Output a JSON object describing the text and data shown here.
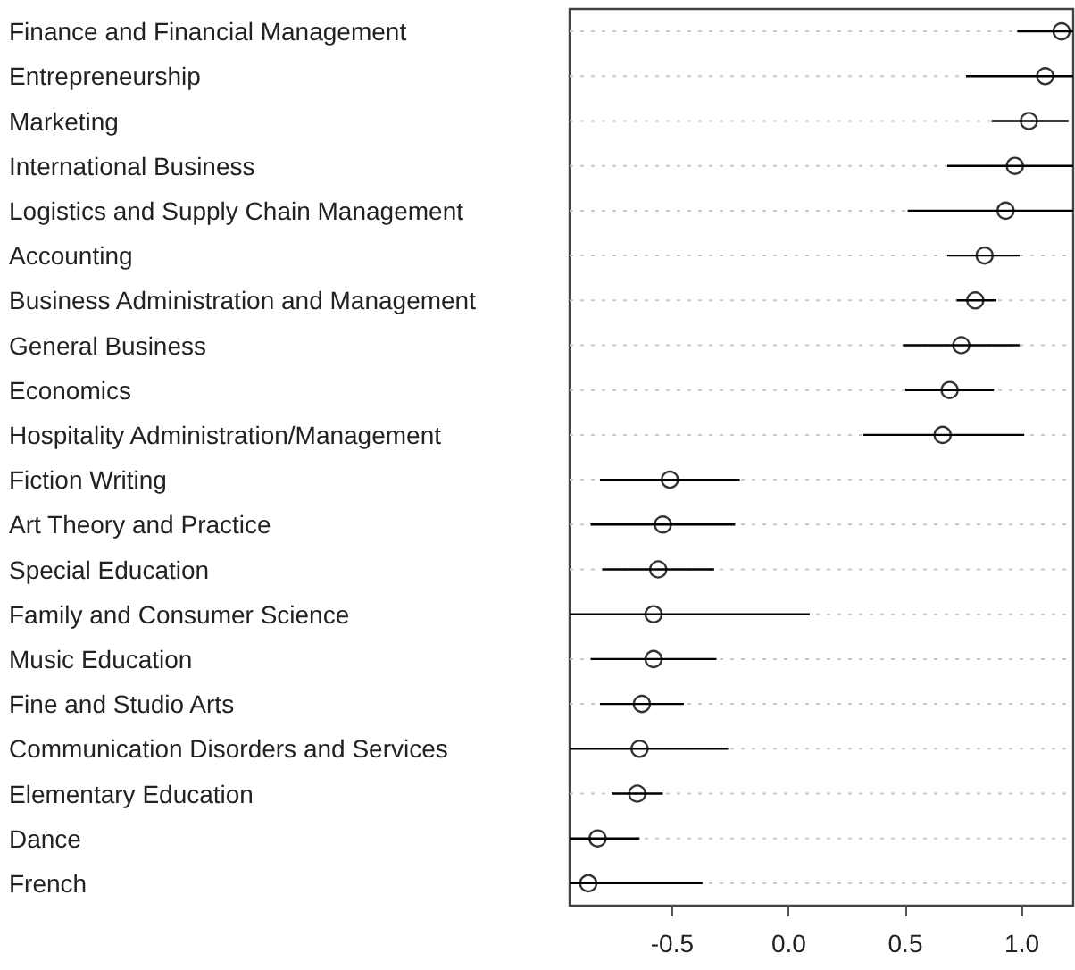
{
  "chart_data": {
    "type": "scatter",
    "orientation": "horizontal",
    "categories": [
      "Finance and Financial Management",
      "Entrepreneurship",
      "Marketing",
      "International Business",
      "Logistics and Supply Chain Management",
      "Accounting",
      "Business Administration and Management",
      "General Business",
      "Economics",
      "Hospitality Administration/Management",
      "Fiction Writing",
      "Art Theory and Practice",
      "Special Education",
      "Family and Consumer Science",
      "Music Education",
      "Fine and Studio Arts",
      "Communication Disorders and Services",
      "Elementary Education",
      "Dance",
      "French"
    ],
    "values": [
      1.17,
      1.1,
      1.03,
      0.97,
      0.93,
      0.84,
      0.8,
      0.74,
      0.69,
      0.66,
      -0.51,
      -0.54,
      -0.56,
      -0.58,
      -0.58,
      -0.63,
      -0.64,
      -0.65,
      -0.82,
      -0.86
    ],
    "errors": [
      [
        0.98,
        1.22
      ],
      [
        0.76,
        1.22
      ],
      [
        0.87,
        1.2
      ],
      [
        0.68,
        1.22
      ],
      [
        0.51,
        1.22
      ],
      [
        0.68,
        0.99
      ],
      [
        0.72,
        0.89
      ],
      [
        0.49,
        0.99
      ],
      [
        0.5,
        0.88
      ],
      [
        0.32,
        1.01
      ],
      [
        -0.81,
        -0.21
      ],
      [
        -0.85,
        -0.23
      ],
      [
        -0.8,
        -0.32
      ],
      [
        -0.94,
        0.09
      ],
      [
        -0.85,
        -0.31
      ],
      [
        -0.81,
        -0.45
      ],
      [
        -0.94,
        -0.26
      ],
      [
        -0.76,
        -0.54
      ],
      [
        -0.94,
        -0.64
      ],
      [
        -0.94,
        -0.37
      ]
    ],
    "color": "#000000",
    "xlim": [
      -0.94,
      1.22
    ],
    "xticks": [
      {
        "value": -0.5,
        "label": "-0.5"
      },
      {
        "value": 0,
        "label": "0.0"
      },
      {
        "value": 0.5,
        "label": "0.5"
      },
      {
        "value": 1,
        "label": "1.0"
      }
    ],
    "grid": "y",
    "marker": "circle"
  }
}
